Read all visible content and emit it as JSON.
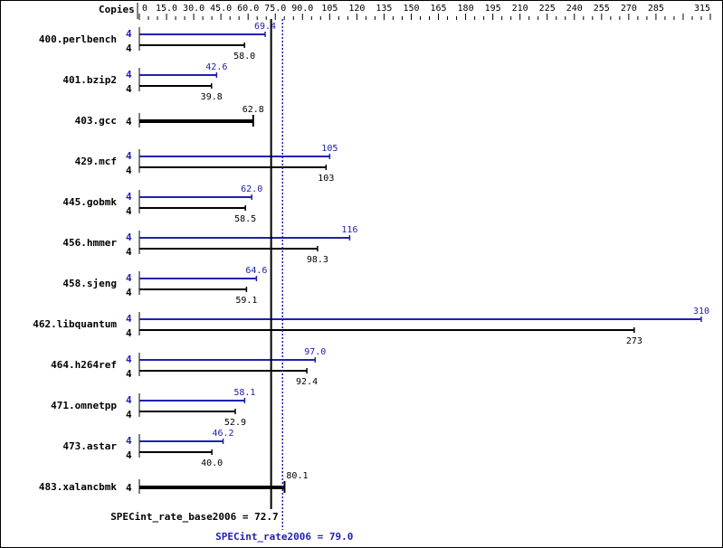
{
  "chart_data": {
    "type": "bar",
    "orientation": "horizontal",
    "axis_label": "Copies",
    "xlim": [
      0,
      315
    ],
    "ticks": [
      "0",
      "15.0",
      "30.0",
      "45.0",
      "60.0",
      "75.0",
      "90.0",
      "105",
      "120",
      "135",
      "150",
      "165",
      "180",
      "195",
      "210",
      "225",
      "240",
      "255",
      "270",
      "285",
      "315"
    ],
    "tick_values": [
      0,
      15,
      30,
      45,
      60,
      75,
      90,
      105,
      120,
      135,
      150,
      165,
      180,
      195,
      210,
      225,
      240,
      255,
      270,
      285,
      315
    ],
    "colors": {
      "peak": "#2020b0",
      "base": "#000000"
    },
    "benchmarks": [
      {
        "name": "400.perlbench",
        "peak_copies": "4",
        "peak": 69.4,
        "peak_label": "69.4",
        "base_copies": "4",
        "base": 58.0,
        "base_label": "58.0"
      },
      {
        "name": "401.bzip2",
        "peak_copies": "4",
        "peak": 42.6,
        "peak_label": "42.6",
        "base_copies": "4",
        "base": 39.8,
        "base_label": "39.8"
      },
      {
        "name": "403.gcc",
        "base_copies": "4",
        "base": 62.8,
        "base_label": "62.8"
      },
      {
        "name": "429.mcf",
        "peak_copies": "4",
        "peak": 105,
        "peak_label": "105",
        "base_copies": "4",
        "base": 103,
        "base_label": "103"
      },
      {
        "name": "445.gobmk",
        "peak_copies": "4",
        "peak": 62.0,
        "peak_label": "62.0",
        "base_copies": "4",
        "base": 58.5,
        "base_label": "58.5"
      },
      {
        "name": "456.hmmer",
        "peak_copies": "4",
        "peak": 116,
        "peak_label": "116",
        "base_copies": "4",
        "base": 98.3,
        "base_label": "98.3"
      },
      {
        "name": "458.sjeng",
        "peak_copies": "4",
        "peak": 64.6,
        "peak_label": "64.6",
        "base_copies": "4",
        "base": 59.1,
        "base_label": "59.1"
      },
      {
        "name": "462.libquantum",
        "peak_copies": "4",
        "peak": 310,
        "peak_label": "310",
        "base_copies": "4",
        "base": 273,
        "base_label": "273"
      },
      {
        "name": "464.h264ref",
        "peak_copies": "4",
        "peak": 97.0,
        "peak_label": "97.0",
        "base_copies": "4",
        "base": 92.4,
        "base_label": "92.4"
      },
      {
        "name": "471.omnetpp",
        "peak_copies": "4",
        "peak": 58.1,
        "peak_label": "58.1",
        "base_copies": "4",
        "base": 52.9,
        "base_label": "52.9"
      },
      {
        "name": "473.astar",
        "peak_copies": "4",
        "peak": 46.2,
        "peak_label": "46.2",
        "base_copies": "4",
        "base": 40.0,
        "base_label": "40.0"
      },
      {
        "name": "483.xalancbmk",
        "base_copies": "4",
        "base": 80.1,
        "base_label": "80.1"
      }
    ],
    "base_mean": 72.7,
    "peak_mean": 79.0,
    "base_mean_label": "SPECint_rate_base2006 = 72.7",
    "peak_mean_label": "SPECint_rate2006 = 79.0"
  }
}
